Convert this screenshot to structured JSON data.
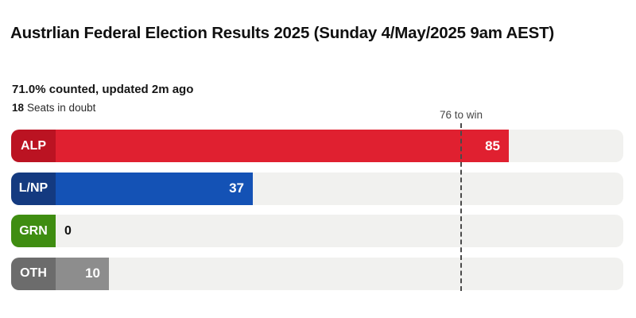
{
  "header": {
    "title": "Austrlian Federal Election Results 2025 (Sunday 4/May/2025 9am AEST)",
    "counted_status": "71.0% counted, updated 2m ago",
    "seats_in_doubt_count": "18",
    "seats_in_doubt_label": "Seats in doubt"
  },
  "chart_data": {
    "type": "bar",
    "orientation": "horizontal",
    "title": "Austrlian Federal Election Results 2025 (Sunday 4/May/2025 9am AEST)",
    "categories": [
      "ALP",
      "L/NP",
      "GRN",
      "OTH"
    ],
    "values": [
      85,
      37,
      0,
      10
    ],
    "xlim": [
      0,
      106
    ],
    "grid": false,
    "legend": "none",
    "threshold": {
      "value": 76,
      "label": "76 to win"
    },
    "series": [
      {
        "party": "ALP",
        "seats": 85,
        "bar_color": "#e02030",
        "tag_color": "#bb1322"
      },
      {
        "party": "L/NP",
        "seats": 37,
        "bar_color": "#1452b5",
        "tag_color": "#143a80"
      },
      {
        "party": "GRN",
        "seats": 0,
        "bar_color": "#52a51c",
        "tag_color": "#3f8d11"
      },
      {
        "party": "OTH",
        "seats": 10,
        "bar_color": "#8d8d8d",
        "tag_color": "#6c6c6c"
      }
    ]
  },
  "colors": {
    "track": "#f1f1ef",
    "threshold_line": "#4a4a4a",
    "value_inside_text": "#ffffff",
    "value_outside_text": "#111111",
    "background": "#ffffff"
  }
}
